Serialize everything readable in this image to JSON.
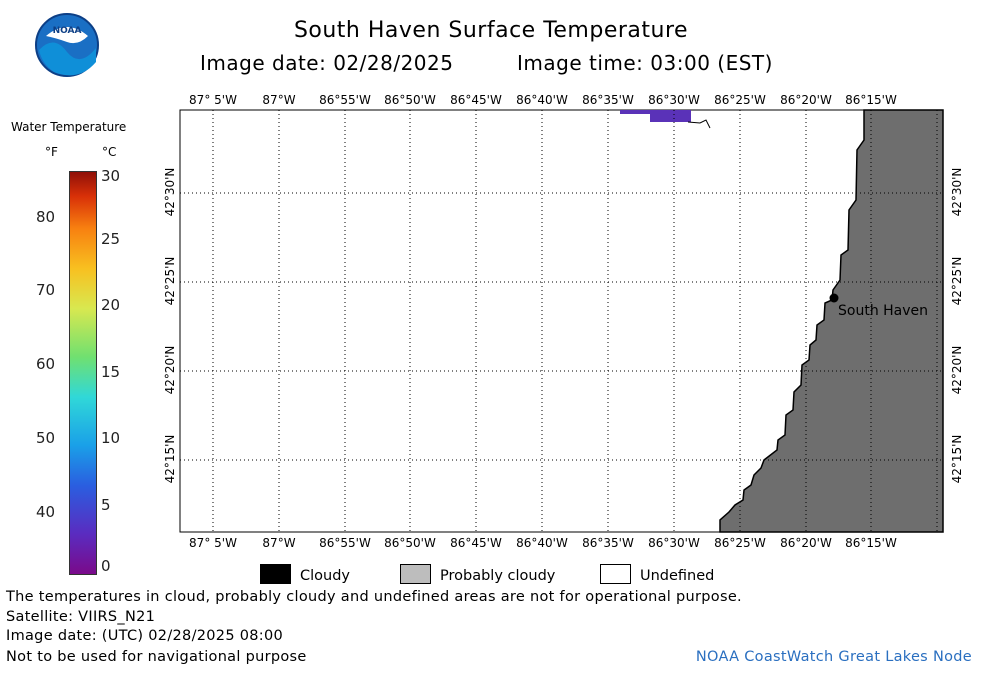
{
  "header": {
    "title": "South Haven Surface Temperature",
    "image_date": "Image date: 02/28/2025",
    "image_time": "Image time: 03:00 (EST)",
    "logo_text": "NOAA"
  },
  "scale": {
    "title": "Water Temperature",
    "unit_f": "°F",
    "unit_c": "°C",
    "f_ticks": [
      "80",
      "70",
      "60",
      "50",
      "40"
    ],
    "c_ticks": [
      "30",
      "25",
      "20",
      "15",
      "10",
      "5",
      "0"
    ]
  },
  "map": {
    "lon_labels": [
      "87° 5'W",
      "87°W",
      "86°55'W",
      "86°50'W",
      "86°45'W",
      "86°40'W",
      "86°35'W",
      "86°30'W",
      "86°25'W",
      "86°20'W",
      "86°15'W"
    ],
    "lat_labels": [
      "42°30'N",
      "42°25'N",
      "42°20'N",
      "42°15'N"
    ],
    "place_label": "South Haven",
    "land_color": "#6e6e6e",
    "water_color": "#ffffff",
    "cold_water_color": "#5a32b8"
  },
  "legend": {
    "cloudy": "Cloudy",
    "probably_cloudy": "Probably cloudy",
    "undefined": "Undefined",
    "cloudy_color": "#000000",
    "probably_cloudy_color": "#bdbdbd",
    "undefined_color": "#ffffff"
  },
  "footer": {
    "disclaimer": "The temperatures in cloud, probably cloudy and undefined areas are not for operational purpose.",
    "satellite": "Satellite: VIIRS_N21",
    "utc_date": "Image date: (UTC) 02/28/2025  08:00",
    "nav_warning": "Not to be used for navigational purpose",
    "credit": "NOAA CoastWatch Great Lakes Node"
  }
}
